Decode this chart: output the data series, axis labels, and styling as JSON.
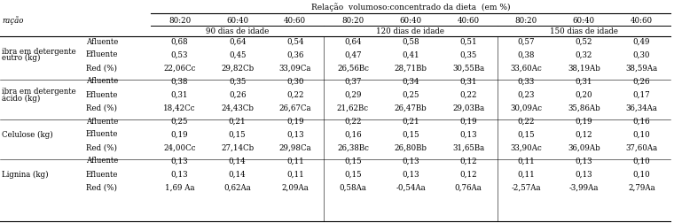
{
  "header_main": "Relação  volumoso:concentrado da dieta  (em %)",
  "col_label": "ração",
  "subgroups": [
    "90 dias de idade",
    "120 dias de idade",
    "150 dias de idade"
  ],
  "col_ratios": [
    "80:20",
    "60:40",
    "40:60"
  ],
  "row_groups": [
    {
      "label_lines": [
        "ibra em detergente",
        "eutro (kg)"
      ],
      "rows": [
        {
          "type": "Afluente",
          "values": [
            "0,68",
            "0,64",
            "0,54",
            "0,64",
            "0,58",
            "0,51",
            "0,57",
            "0,52",
            "0,49"
          ]
        },
        {
          "type": "Efluente",
          "values": [
            "0,53",
            "0,45",
            "0,36",
            "0,47",
            "0,41",
            "0,35",
            "0,38",
            "0,32",
            "0,30"
          ]
        },
        {
          "type": "Red (%)",
          "values": [
            "22,06Cc",
            "29,82Cb",
            "33,09Ca",
            "26,56Bc",
            "28,71Bb",
            "30,55Ba",
            "33,60Ac",
            "38,19Ab",
            "38,59Aa"
          ]
        }
      ]
    },
    {
      "label_lines": [
        "ibra em detergente",
        "ácido (kg)"
      ],
      "rows": [
        {
          "type": "Afluente",
          "values": [
            "0,38",
            "0,35",
            "0,30",
            "0,37",
            "0,34",
            "0,31",
            "0,33",
            "0,31",
            "0,26"
          ]
        },
        {
          "type": "Efluente",
          "values": [
            "0,31",
            "0,26",
            "0,22",
            "0,29",
            "0,25",
            "0,22",
            "0,23",
            "0,20",
            "0,17"
          ]
        },
        {
          "type": "Red (%)",
          "values": [
            "18,42Cc",
            "24,43Cb",
            "26,67Ca",
            "21,62Bc",
            "26,47Bb",
            "29,03Ba",
            "30,09Ac",
            "35,86Ab",
            "36,34Aa"
          ]
        }
      ]
    },
    {
      "label_lines": [
        "Celulose (kg)"
      ],
      "rows": [
        {
          "type": "Afluente",
          "values": [
            "0,25",
            "0,21",
            "0,19",
            "0,22",
            "0,21",
            "0,19",
            "0,22",
            "0,19",
            "0,16"
          ]
        },
        {
          "type": "Efluente",
          "values": [
            "0,19",
            "0,15",
            "0,13",
            "0,16",
            "0,15",
            "0,13",
            "0,15",
            "0,12",
            "0,10"
          ]
        },
        {
          "type": "Red (%)",
          "values": [
            "24,00Cc",
            "27,14Cb",
            "29,98Ca",
            "26,38Bc",
            "26,80Bb",
            "31,65Ba",
            "33,90Ac",
            "36,09Ab",
            "37,60Aa"
          ]
        }
      ]
    },
    {
      "label_lines": [
        "Lignina (kg)"
      ],
      "rows": [
        {
          "type": "Afluente",
          "values": [
            "0,13",
            "0,14",
            "0,11",
            "0,15",
            "0,13",
            "0,12",
            "0,11",
            "0,13",
            "0,10"
          ]
        },
        {
          "type": "Efluente",
          "values": [
            "0,13",
            "0,14",
            "0,11",
            "0,15",
            "0,13",
            "0,12",
            "0,11",
            "0,13",
            "0,10"
          ]
        },
        {
          "type": "Red (%)",
          "values": [
            "1,69 Aa",
            "0,62Aa",
            "2,09Aa",
            "0,58Aa",
            "-0,54Aa",
            "0,76Aa",
            "-2,57Aa",
            "-3,99Aa",
            "2,79Aa"
          ]
        }
      ]
    }
  ],
  "font_size": 6.2,
  "bg_color": "white"
}
